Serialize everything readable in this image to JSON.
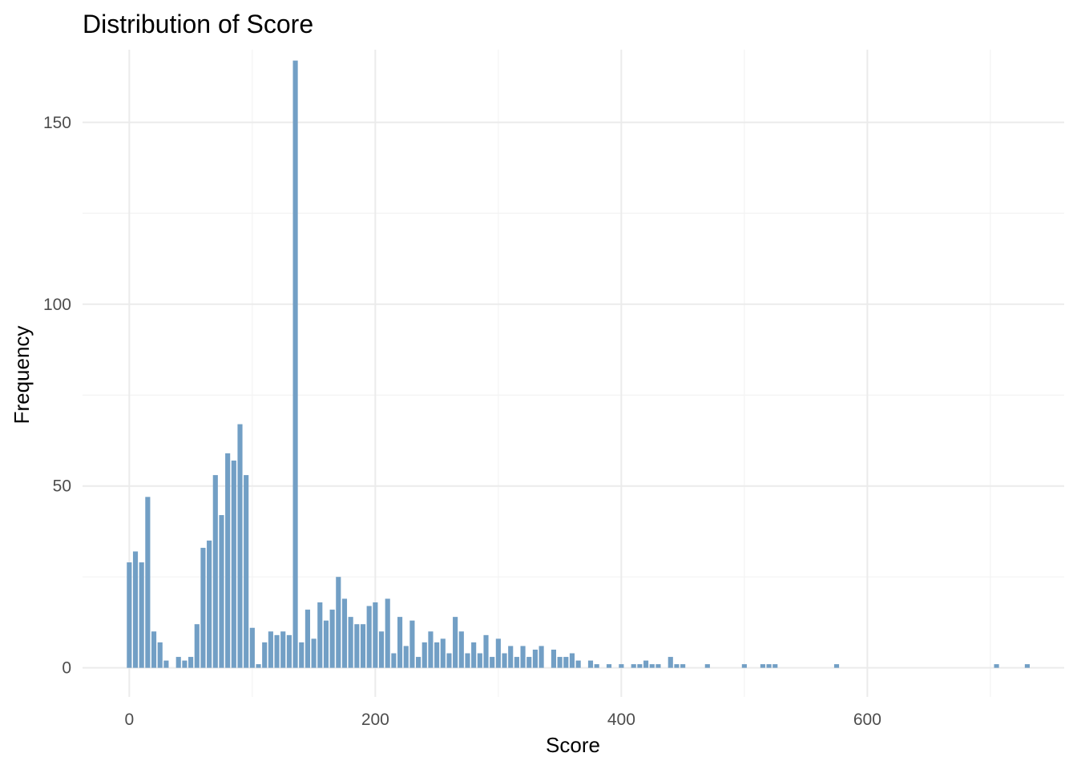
{
  "chart_data": {
    "type": "bar",
    "title": "Distribution of Score",
    "xlabel": "Score",
    "ylabel": "Frequency",
    "xlim": [
      -38,
      760
    ],
    "ylim": [
      -8,
      170
    ],
    "x_ticks": [
      0,
      200,
      400,
      600
    ],
    "y_ticks": [
      0,
      50,
      100,
      150
    ],
    "grid": true,
    "bar_width": 4,
    "bar_color": "#729fc5",
    "background": "#ffffff",
    "grid_major_color": "#ebebeb",
    "grid_minor_color": "#f3f3f3",
    "x": [
      0,
      5,
      10,
      15,
      20,
      25,
      30,
      40,
      45,
      50,
      55,
      60,
      65,
      70,
      75,
      80,
      85,
      90,
      95,
      100,
      105,
      110,
      115,
      120,
      125,
      130,
      135,
      140,
      145,
      150,
      155,
      160,
      165,
      170,
      175,
      180,
      185,
      190,
      195,
      200,
      205,
      210,
      215,
      220,
      225,
      230,
      235,
      240,
      245,
      250,
      255,
      260,
      265,
      270,
      275,
      280,
      285,
      290,
      295,
      300,
      305,
      310,
      315,
      320,
      325,
      330,
      335,
      345,
      350,
      355,
      360,
      365,
      375,
      380,
      390,
      400,
      410,
      415,
      420,
      425,
      430,
      440,
      445,
      450,
      470,
      500,
      515,
      520,
      525,
      575,
      705,
      730
    ],
    "values": [
      29,
      32,
      29,
      47,
      10,
      7,
      2,
      3,
      2,
      3,
      12,
      33,
      35,
      53,
      42,
      59,
      57,
      67,
      53,
      11,
      1,
      7,
      10,
      9,
      10,
      9,
      167,
      7,
      16,
      8,
      18,
      13,
      16,
      25,
      19,
      14,
      12,
      12,
      17,
      18,
      10,
      19,
      4,
      14,
      6,
      13,
      3,
      7,
      10,
      7,
      8,
      4,
      14,
      10,
      4,
      7,
      4,
      9,
      3,
      8,
      4,
      6,
      3,
      6,
      3,
      5,
      6,
      5,
      3,
      3,
      4,
      2,
      2,
      1,
      1,
      1,
      1,
      1,
      2,
      1,
      1,
      3,
      1,
      1,
      1,
      1,
      1,
      1,
      1,
      1,
      1,
      1
    ]
  }
}
